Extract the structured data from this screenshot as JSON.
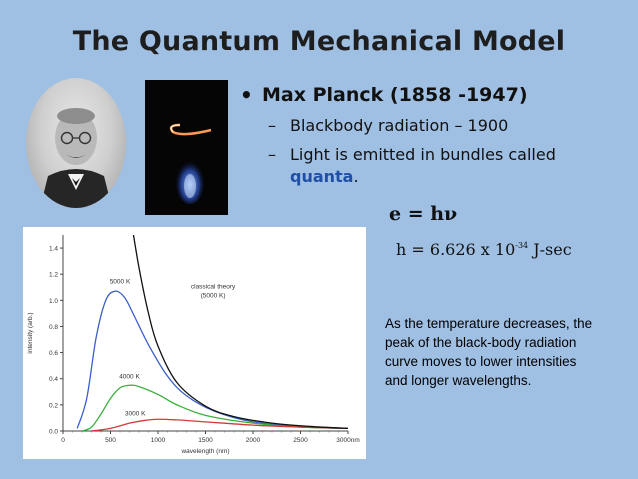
{
  "slide": {
    "title": "The Quantum Mechanical Model",
    "bullet_main": "Max Planck (1858 -1947)",
    "sub_dash": "–",
    "sub1": "Blackbody radiation – 1900",
    "sub2_text": "Light is emitted in bundles called",
    "sub2_highlight": "quanta",
    "sub2_end": ".",
    "equation": "e = hν",
    "planck_prefix": "h = 6.626 x 10",
    "planck_exponent": "-34",
    "planck_unit": "J-sec",
    "note": "As the temperature decreases, the peak of the black-body radiation curve moves to lower intensities and longer wavelengths.",
    "colors": {
      "background": "#9fbfe3",
      "highlight": "#1f4fa6"
    }
  },
  "chart_data": {
    "type": "line",
    "xlabel": "wavelength (nm)",
    "ylabel": "intensity (arb.)",
    "xlim": [
      0,
      3000
    ],
    "ylim": [
      0,
      1.5
    ],
    "x_ticks": [
      "0",
      "500",
      "1000",
      "1500",
      "2000",
      "2500",
      "3000nm"
    ],
    "y_ticks": [
      "0.0",
      "0.2",
      "0.4",
      "0.6",
      "0.8",
      "1.0",
      "1.2",
      "1.4"
    ],
    "series": [
      {
        "name": "5000 K",
        "color": "#3a5fc8",
        "x": [
          150,
          250,
          350,
          450,
          550,
          650,
          750,
          900,
          1100,
          1300,
          1600,
          2000,
          2500,
          3000
        ],
        "y": [
          0.02,
          0.25,
          0.72,
          1.0,
          1.07,
          1.02,
          0.88,
          0.66,
          0.42,
          0.27,
          0.15,
          0.07,
          0.035,
          0.02
        ]
      },
      {
        "name": "4000 K",
        "color": "#3cae3c",
        "x": [
          200,
          300,
          400,
          500,
          600,
          700,
          800,
          1000,
          1200,
          1500,
          2000,
          2500,
          3000
        ],
        "y": [
          0.0,
          0.03,
          0.13,
          0.25,
          0.33,
          0.35,
          0.34,
          0.28,
          0.2,
          0.12,
          0.06,
          0.03,
          0.02
        ]
      },
      {
        "name": "3000 K",
        "color": "#d23a3a",
        "x": [
          300,
          500,
          700,
          850,
          1000,
          1200,
          1500,
          2000,
          2500,
          3000
        ],
        "y": [
          0.0,
          0.02,
          0.06,
          0.08,
          0.09,
          0.085,
          0.07,
          0.045,
          0.03,
          0.02
        ]
      },
      {
        "name": "classical theory (5000 K)",
        "color": "#111111",
        "x": [
          720,
          800,
          900,
          1000,
          1200,
          1500,
          1800,
          2200,
          2600,
          3000
        ],
        "y": [
          1.6,
          1.25,
          0.9,
          0.65,
          0.37,
          0.19,
          0.11,
          0.06,
          0.035,
          0.02
        ]
      }
    ],
    "annotations": [
      "5000 K",
      "4000 K",
      "3000 K",
      "classical theory",
      "(5000 K)"
    ]
  }
}
